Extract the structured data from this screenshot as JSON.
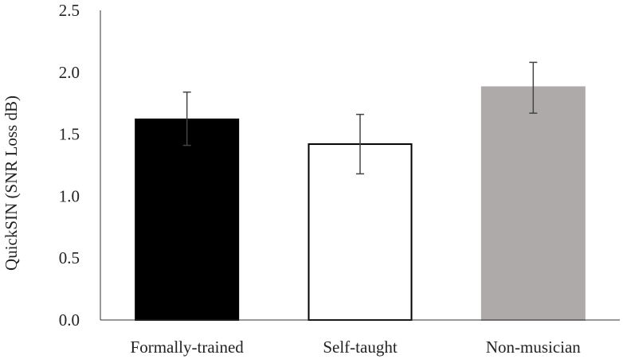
{
  "chart_data": {
    "type": "bar",
    "title": "",
    "xlabel": "",
    "ylabel": "QuickSIN (SNR Loss dB)",
    "categories": [
      "Formally-trained",
      "Self-taught",
      "Non-musician"
    ],
    "values": [
      1.62,
      1.42,
      1.88
    ],
    "error_low": [
      1.41,
      1.18,
      1.67
    ],
    "error_high": [
      1.84,
      1.66,
      2.08
    ],
    "bar_colors": [
      "#000000",
      "#ffffff",
      "#aeaaaa"
    ],
    "bar_edge_colors": [
      "#000000",
      "#000000",
      "#aeaaaa"
    ],
    "ylim": [
      0,
      2.5
    ],
    "yticks": [
      0.0,
      0.5,
      1.0,
      1.5,
      2.0,
      2.5
    ],
    "ytick_labels": [
      "0.0",
      "0.5",
      "1.0",
      "1.5",
      "2.0",
      "2.5"
    ],
    "grid": false,
    "legend": "none"
  }
}
